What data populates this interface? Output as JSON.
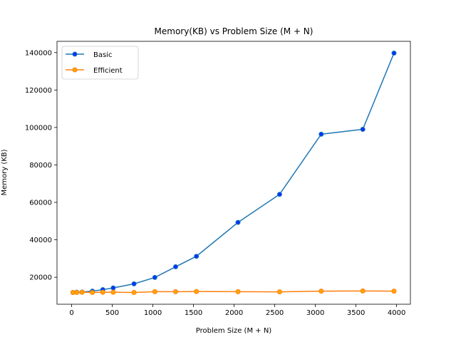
{
  "chart_data": {
    "type": "line",
    "title": "Memory(KB) vs Problem Size (M + N)",
    "xlabel": "Problem Size (M + N)",
    "ylabel": "Memory (KB)",
    "xlim": [
      -180,
      4170
    ],
    "ylim": [
      5600,
      146000
    ],
    "xticks": [
      0,
      500,
      1000,
      1500,
      2000,
      2500,
      3000,
      3500,
      4000
    ],
    "yticks": [
      20000,
      40000,
      60000,
      80000,
      100000,
      120000,
      140000
    ],
    "grid": false,
    "legend_position": "top-left",
    "x": [
      16,
      64,
      128,
      256,
      384,
      512,
      768,
      1024,
      1280,
      1536,
      2048,
      2560,
      3072,
      3584,
      3968
    ],
    "series": [
      {
        "name": "Basic",
        "color": "#1f77b4",
        "marker_face": "#0033ff",
        "values": [
          11900,
          12000,
          12100,
          12600,
          13400,
          14300,
          16500,
          19900,
          25600,
          31200,
          49300,
          64300,
          96400,
          99000,
          139700
        ]
      },
      {
        "name": "Efficient",
        "color": "#ff7f0e",
        "marker_face": "#ffa500",
        "values": [
          11900,
          11900,
          12000,
          11900,
          12000,
          12000,
          11900,
          12300,
          12300,
          12400,
          12300,
          12200,
          12600,
          12700,
          12600
        ]
      }
    ]
  }
}
